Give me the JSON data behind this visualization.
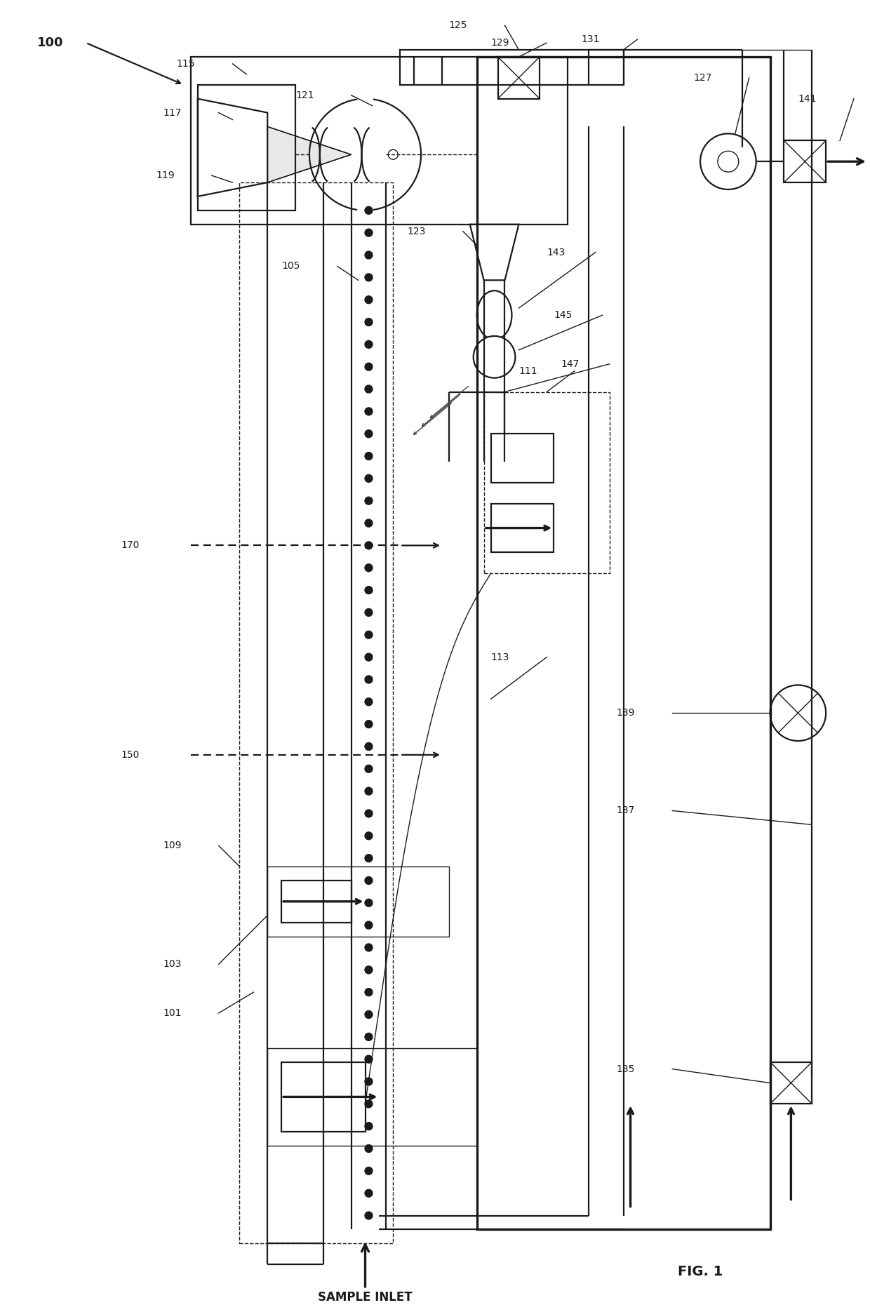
{
  "bg_color": "#ffffff",
  "line_color": "#1a1a1a",
  "fig_width": 12.4,
  "fig_height": 18.6
}
